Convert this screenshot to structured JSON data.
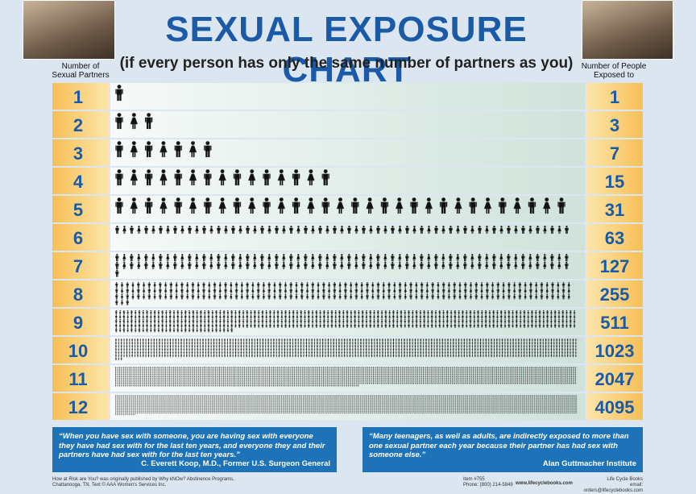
{
  "header": {
    "title": "SEXUAL EXPOSURE CHART",
    "subtitle": "(if every person has only the same number of partners as you)",
    "left_label": [
      "Number of",
      "Sexual Partners"
    ],
    "right_label": [
      "Number of People",
      "Exposed to"
    ]
  },
  "rows": [
    {
      "partners": 1,
      "exposed": 1
    },
    {
      "partners": 2,
      "exposed": 3
    },
    {
      "partners": 3,
      "exposed": 7
    },
    {
      "partners": 4,
      "exposed": 15
    },
    {
      "partners": 5,
      "exposed": 31
    },
    {
      "partners": 6,
      "exposed": 63
    },
    {
      "partners": 7,
      "exposed": 127
    },
    {
      "partners": 8,
      "exposed": 255
    },
    {
      "partners": 9,
      "exposed": 511
    },
    {
      "partners": 10,
      "exposed": 1023
    },
    {
      "partners": 11,
      "exposed": 2047
    },
    {
      "partners": 12,
      "exposed": 4095
    }
  ],
  "quotes": [
    {
      "text": "“When you have sex with someone, you are having sex with everyone they have had sex with for the last ten years, and everyone they and their partners have had sex with for the last ten years.”",
      "attribution": "C. Everett Koop, M.D., Former U.S. Surgeon General"
    },
    {
      "text": "“Many teenagers, as well as adults, are indirectly exposed to more than one sexual partner each year because their partner has had sex with someone else.”",
      "attribution": "Alan Guttmacher Institute"
    }
  ],
  "footer": {
    "credit": [
      "How at Risk are You? was originally published by Why kNOw? Abstinence Programs,",
      "Chattanooga, TN. Text © AAA Women's Services Inc."
    ],
    "item": [
      "Item #755",
      "Phone: (800) 214-5849"
    ],
    "website": "www.lifecyclebooks.com",
    "publisher": [
      "Life Cycle Books",
      "email: orders@lifecyclebooks.com"
    ]
  }
}
